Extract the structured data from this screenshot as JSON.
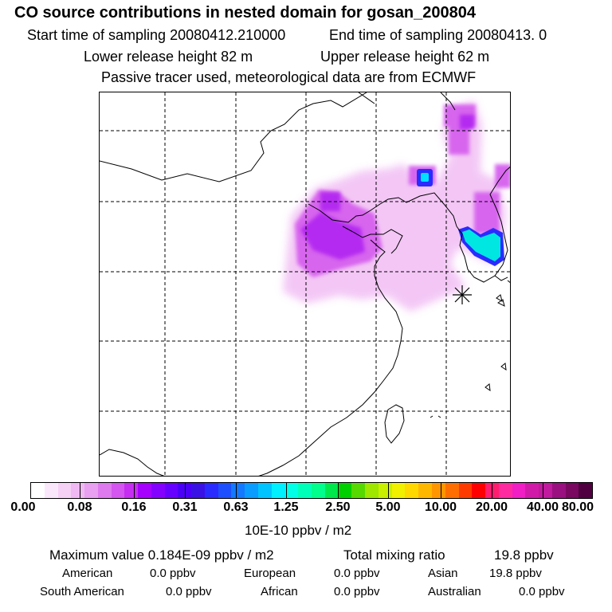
{
  "header": {
    "title": "CO  source contributions in nested domain for gosan_200804",
    "start_label": "Start time of sampling 20080412.210000",
    "end_label": "End time of sampling 20080413.     0",
    "lower_label": "Lower release height   82 m",
    "upper_label": "Upper release height   62 m",
    "note": "Passive tracer used, meteorological data are from ECMWF"
  },
  "map": {
    "receptor_marker": "asterisk-icon",
    "gridline_style": "dashed"
  },
  "colorbar": {
    "colors": [
      "#ffffff",
      "#fbe7fb",
      "#f6d1f6",
      "#f0b9f3",
      "#e9a0f0",
      "#de79ee",
      "#d455ef",
      "#c62ef2",
      "#a600ff",
      "#8400ff",
      "#6600ff",
      "#4a00f8",
      "#3a12e6",
      "#2a2bff",
      "#1e4fff",
      "#1479ff",
      "#0a9cff",
      "#00c4ff",
      "#00f0ff",
      "#00ffe6",
      "#00ffb8",
      "#00ff8c",
      "#00e84c",
      "#00d000",
      "#56d900",
      "#9fe600",
      "#c8f000",
      "#f0f000",
      "#ffd800",
      "#ffb800",
      "#ff9600",
      "#ff6e00",
      "#ff3a00",
      "#ff0000",
      "#ff1e6e",
      "#ff2aa0",
      "#f01ec4",
      "#d21aa8",
      "#c01a9e",
      "#9a1080",
      "#7a0860",
      "#500040"
    ],
    "ticks": [
      "0.00",
      "0.08",
      "0.16",
      "0.31",
      "0.63",
      "1.25",
      "2.50",
      "5.00",
      "10.00",
      "20.00",
      "40.00",
      "80.00"
    ],
    "units": "10E-10 ppbv / m2"
  },
  "stats": {
    "max_label": "Maximum value  0.184E-09 ppbv / m2",
    "total_label": "Total mixing ratio",
    "total_value": "19.8 ppbv",
    "american_label": "American",
    "american_value": "0.0 ppbv",
    "european_label": "European",
    "european_value": "0.0 ppbv",
    "asian_label": "Asian",
    "asian_value": "19.8 ppbv",
    "south_american_label": "South American",
    "south_american_value": "0.0 ppbv",
    "african_label": "African",
    "african_value": "0.0 ppbv",
    "australian_label": "Australian",
    "australian_value": "0.0 ppbv"
  }
}
